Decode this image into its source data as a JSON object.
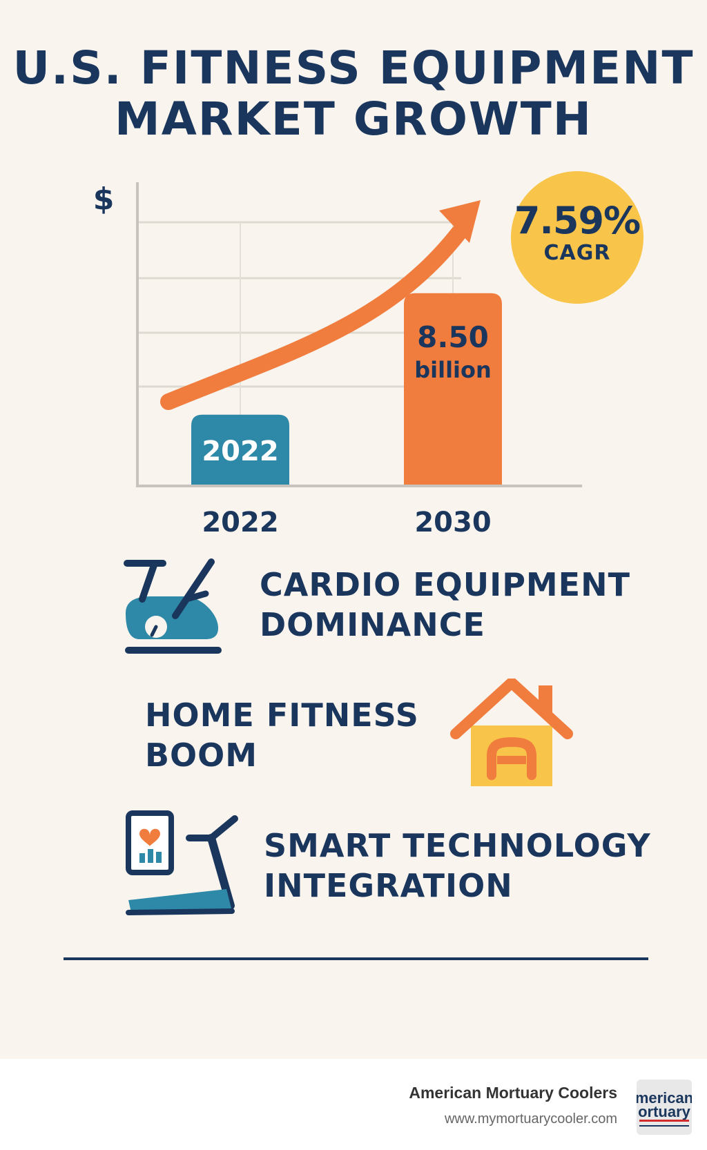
{
  "title": {
    "line1": "U.S. FITNESS EQUIPMENT",
    "line2": "MARKET GROWTH"
  },
  "chart_data": {
    "type": "bar",
    "y_axis_symbol": "$",
    "categories": [
      "2022",
      "2030"
    ],
    "bars": [
      {
        "category": "2022",
        "label": "2022",
        "relative_height": 0.23,
        "color": "#2e89a8"
      },
      {
        "category": "2030",
        "label_value": "8.50",
        "label_unit": "billion",
        "relative_height": 0.63,
        "color": "#f07c3e"
      }
    ],
    "grid": true,
    "trend_arrow": true
  },
  "cagr": {
    "value": "7.59%",
    "label": "CAGR"
  },
  "features": [
    {
      "line1": "CARDIO EQUIPMENT",
      "line2": "DOMINANCE",
      "icon": "exercise-bike-icon"
    },
    {
      "line1": "HOME FITNESS",
      "line2": "BOOM",
      "icon": "house-icon"
    },
    {
      "line1": "SMART TECHNOLOGY",
      "line2": "INTEGRATION",
      "icon": "smart-treadmill-icon"
    }
  ],
  "colors": {
    "navy": "#1b365d",
    "teal": "#2e89a8",
    "orange": "#f07c3e",
    "yellow": "#f8c44a",
    "background": "#f9f5ee"
  },
  "footer": {
    "brand": "American Mortuary Coolers",
    "url": "www.mymortuarycooler.com",
    "logo_text": "merican ortuary"
  }
}
